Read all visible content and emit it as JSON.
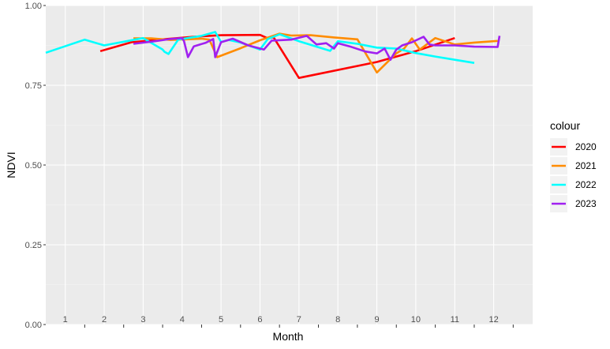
{
  "chart_data": {
    "type": "line",
    "xlabel": "Month",
    "ylabel": "NDVI",
    "xlim": [
      0,
      12.5
    ],
    "ylim": [
      0,
      1
    ],
    "y_ticks": [
      "0.00",
      "0.25",
      "0.50",
      "0.75",
      "1.00"
    ],
    "y_tick_values": [
      0,
      0.25,
      0.5,
      0.75,
      1.0
    ],
    "x_tick_labels": [
      "1",
      "2",
      "3",
      "4",
      "5",
      "6",
      "7",
      "8",
      "9",
      "10",
      "11",
      "12"
    ],
    "x_tick_label_positions": [
      0.5,
      1.5,
      2.5,
      3.5,
      4.5,
      5.5,
      6.5,
      7.5,
      8.5,
      9.5,
      10.5,
      11.5
    ],
    "x_tick_marks": [
      1,
      2,
      3,
      4,
      5,
      6,
      7,
      8,
      9,
      10,
      11,
      12
    ],
    "grid": true,
    "background": "#ebebeb",
    "legend": {
      "title": "colour",
      "position": "right"
    },
    "series": [
      {
        "name": "2020",
        "color": "#ff0000",
        "points": [
          [
            1.4,
            0.857
          ],
          [
            2.2,
            0.885
          ],
          [
            3.0,
            0.894
          ],
          [
            3.8,
            0.902
          ],
          [
            4.5,
            0.907
          ],
          [
            5.5,
            0.908
          ],
          [
            5.7,
            0.897
          ],
          [
            5.85,
            0.9
          ],
          [
            6.5,
            0.773
          ],
          [
            8.5,
            0.823
          ],
          [
            9.5,
            0.857
          ],
          [
            10.5,
            0.898
          ]
        ]
      },
      {
        "name": "2021",
        "color": "#ff8c00",
        "points": [
          [
            2.25,
            0.897
          ],
          [
            2.7,
            0.897
          ],
          [
            3.2,
            0.892
          ],
          [
            4.0,
            0.896
          ],
          [
            4.2,
            0.893
          ],
          [
            4.4,
            0.838
          ],
          [
            5.0,
            0.866
          ],
          [
            5.5,
            0.891
          ],
          [
            6.0,
            0.912
          ],
          [
            6.3,
            0.906
          ],
          [
            6.8,
            0.907
          ],
          [
            7.4,
            0.9
          ],
          [
            8.0,
            0.894
          ],
          [
            8.5,
            0.79
          ],
          [
            9.0,
            0.85
          ],
          [
            9.2,
            0.865
          ],
          [
            9.4,
            0.897
          ],
          [
            9.6,
            0.862
          ],
          [
            10.0,
            0.898
          ],
          [
            10.5,
            0.878
          ],
          [
            11.0,
            0.884
          ],
          [
            11.6,
            0.889
          ]
        ]
      },
      {
        "name": "2022",
        "color": "#00ffff",
        "points": [
          [
            0,
            0.852
          ],
          [
            1.0,
            0.893
          ],
          [
            1.5,
            0.875
          ],
          [
            2.5,
            0.898
          ],
          [
            3.0,
            0.862
          ],
          [
            3.05,
            0.855
          ],
          [
            3.15,
            0.848
          ],
          [
            3.4,
            0.893
          ],
          [
            4.0,
            0.905
          ],
          [
            4.35,
            0.917
          ],
          [
            4.5,
            0.886
          ],
          [
            4.7,
            0.892
          ],
          [
            5.0,
            0.884
          ],
          [
            5.5,
            0.862
          ],
          [
            5.7,
            0.895
          ],
          [
            6.0,
            0.91
          ],
          [
            6.5,
            0.888
          ],
          [
            7.3,
            0.858
          ],
          [
            7.5,
            0.888
          ],
          [
            8.0,
            0.88
          ],
          [
            8.5,
            0.868
          ],
          [
            9.0,
            0.865
          ],
          [
            9.5,
            0.851
          ],
          [
            10.0,
            0.84
          ],
          [
            10.5,
            0.83
          ],
          [
            11.0,
            0.82
          ]
        ]
      },
      {
        "name": "2023",
        "color": "#a020f0",
        "points": [
          [
            2.25,
            0.88
          ],
          [
            2.8,
            0.888
          ],
          [
            3.2,
            0.895
          ],
          [
            3.5,
            0.898
          ],
          [
            3.55,
            0.888
          ],
          [
            3.65,
            0.838
          ],
          [
            3.8,
            0.872
          ],
          [
            4.1,
            0.883
          ],
          [
            4.3,
            0.895
          ],
          [
            4.35,
            0.838
          ],
          [
            4.5,
            0.885
          ],
          [
            4.8,
            0.896
          ],
          [
            5.2,
            0.875
          ],
          [
            5.6,
            0.862
          ],
          [
            5.8,
            0.89
          ],
          [
            6.3,
            0.893
          ],
          [
            6.7,
            0.905
          ],
          [
            6.95,
            0.878
          ],
          [
            7.2,
            0.882
          ],
          [
            7.4,
            0.865
          ],
          [
            7.5,
            0.882
          ],
          [
            7.8,
            0.872
          ],
          [
            8.2,
            0.856
          ],
          [
            8.5,
            0.85
          ],
          [
            8.7,
            0.865
          ],
          [
            8.85,
            0.83
          ],
          [
            9.0,
            0.862
          ],
          [
            9.15,
            0.875
          ],
          [
            9.4,
            0.885
          ],
          [
            9.7,
            0.902
          ],
          [
            9.85,
            0.878
          ],
          [
            10.0,
            0.875
          ],
          [
            10.5,
            0.875
          ],
          [
            11.0,
            0.871
          ],
          [
            11.6,
            0.87
          ],
          [
            11.65,
            0.905
          ]
        ]
      }
    ]
  }
}
